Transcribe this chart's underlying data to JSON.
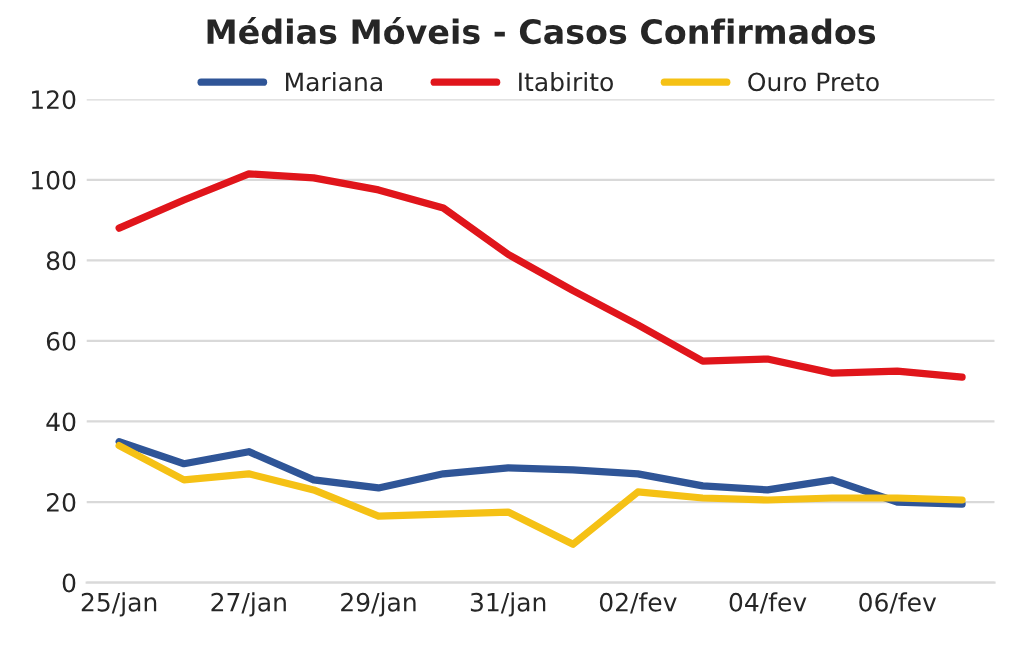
{
  "chart_data": {
    "type": "line",
    "title": "Médias Móveis - Casos Confirmados",
    "categories": [
      "25/jan",
      null,
      "27/jan",
      null,
      "29/jan",
      null,
      "31/jan",
      null,
      "02/fev",
      null,
      "04/fev",
      null,
      "06/fev",
      null
    ],
    "series": [
      {
        "name": "Mariana",
        "color": "#2f5597",
        "values": [
          35,
          29.5,
          32.5,
          25.5,
          23.5,
          27,
          28.5,
          28,
          27,
          24,
          23,
          25.5,
          20,
          19.5
        ]
      },
      {
        "name": "Itabirito",
        "color": "#e0151b",
        "values": [
          88,
          95,
          101.5,
          100.5,
          97.5,
          93,
          81.5,
          72.5,
          64,
          55,
          55.5,
          52,
          52.5,
          51
        ]
      },
      {
        "name": "Ouro Preto",
        "color": "#f5c115",
        "values": [
          34,
          25.5,
          27,
          23,
          16.5,
          17,
          17.5,
          9.5,
          22.5,
          21,
          20.5,
          21,
          21,
          20.5
        ]
      }
    ],
    "ylim": [
      0,
      120
    ],
    "yticks": [
      0,
      20,
      40,
      60,
      80,
      100,
      120
    ],
    "grid": "y",
    "legend": "top",
    "marker": "none",
    "line_style": "solid"
  }
}
